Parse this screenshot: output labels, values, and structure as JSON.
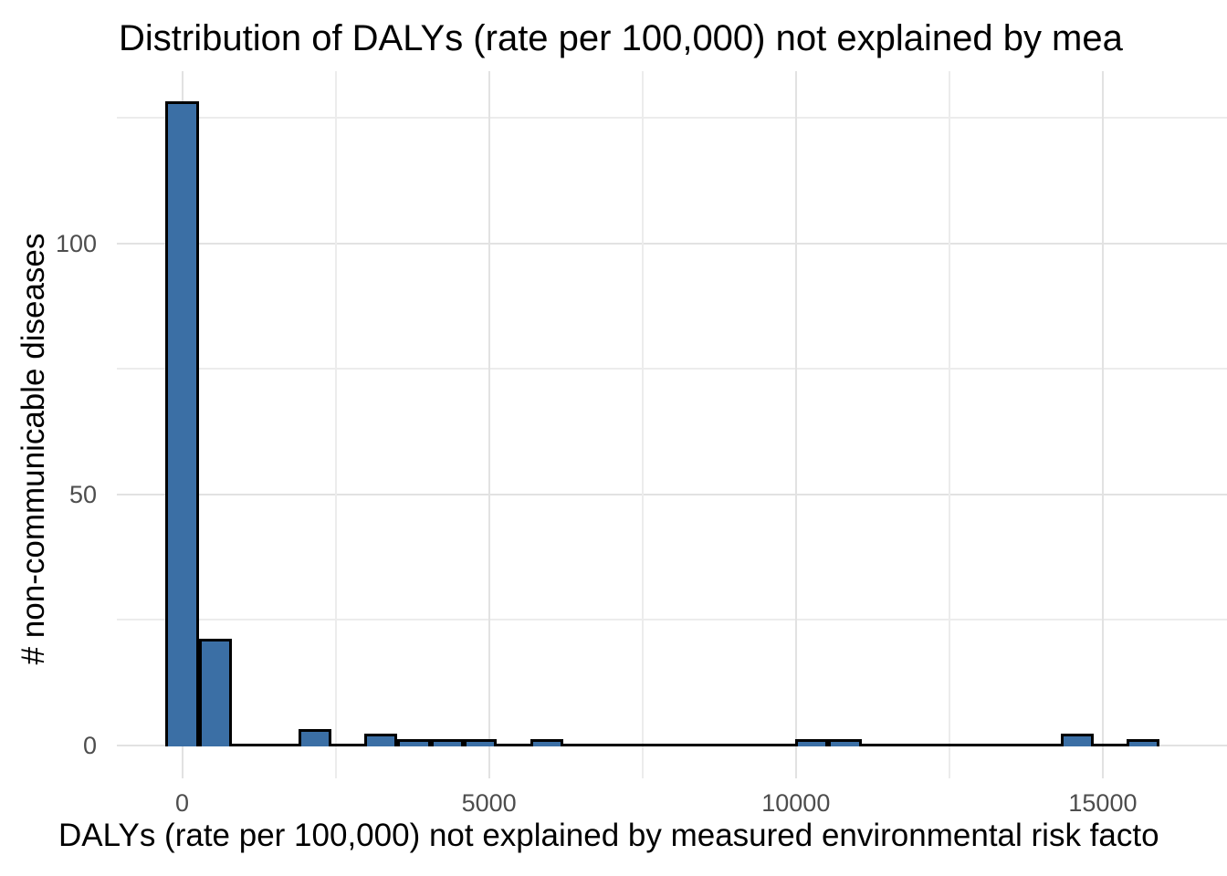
{
  "chart_data": {
    "type": "bar",
    "subtype": "histogram",
    "title": "Distribution of DALYs (rate per 100,000) not explained by mea",
    "xlabel": "DALYs (rate per 100,000) not explained by measured environmental risk facto",
    "ylabel": "# non-communicable diseases",
    "x_tick_labels": [
      "0",
      "5000",
      "10000",
      "15000"
    ],
    "x_ticks": [
      0,
      5000,
      10000,
      15000
    ],
    "x_minor_gridlines": [
      2500,
      7500,
      12500
    ],
    "y_tick_labels": [
      "0",
      "50",
      "100"
    ],
    "y_ticks": [
      0,
      50,
      100
    ],
    "y_minor_gridlines": [
      25,
      75,
      125
    ],
    "xlim": [
      -1063,
      17023
    ],
    "ylim": [
      -6.6,
      134.3
    ],
    "grid": "on",
    "legend": "none",
    "bin_width": 540,
    "bins": [
      {
        "center": 0,
        "count": 128
      },
      {
        "center": 540,
        "count": 21
      },
      {
        "center": 2160,
        "count": 3
      },
      {
        "center": 3240,
        "count": 2
      },
      {
        "center": 3780,
        "count": 1
      },
      {
        "center": 4320,
        "count": 1
      },
      {
        "center": 4860,
        "count": 1
      },
      {
        "center": 5940,
        "count": 1
      },
      {
        "center": 10260,
        "count": 1
      },
      {
        "center": 10800,
        "count": 1
      },
      {
        "center": 14580,
        "count": 2
      },
      {
        "center": 15660,
        "count": 1
      }
    ],
    "zero_count_extent": [
      -270,
      15930
    ],
    "colors": {
      "bar_fill": "#3b6fa5",
      "bar_stroke": "#000000",
      "grid_major": "#e2e2e2",
      "grid_minor": "#ececec",
      "tick_label": "#4d4d4d",
      "text": "#000000",
      "background": "#ffffff"
    }
  }
}
